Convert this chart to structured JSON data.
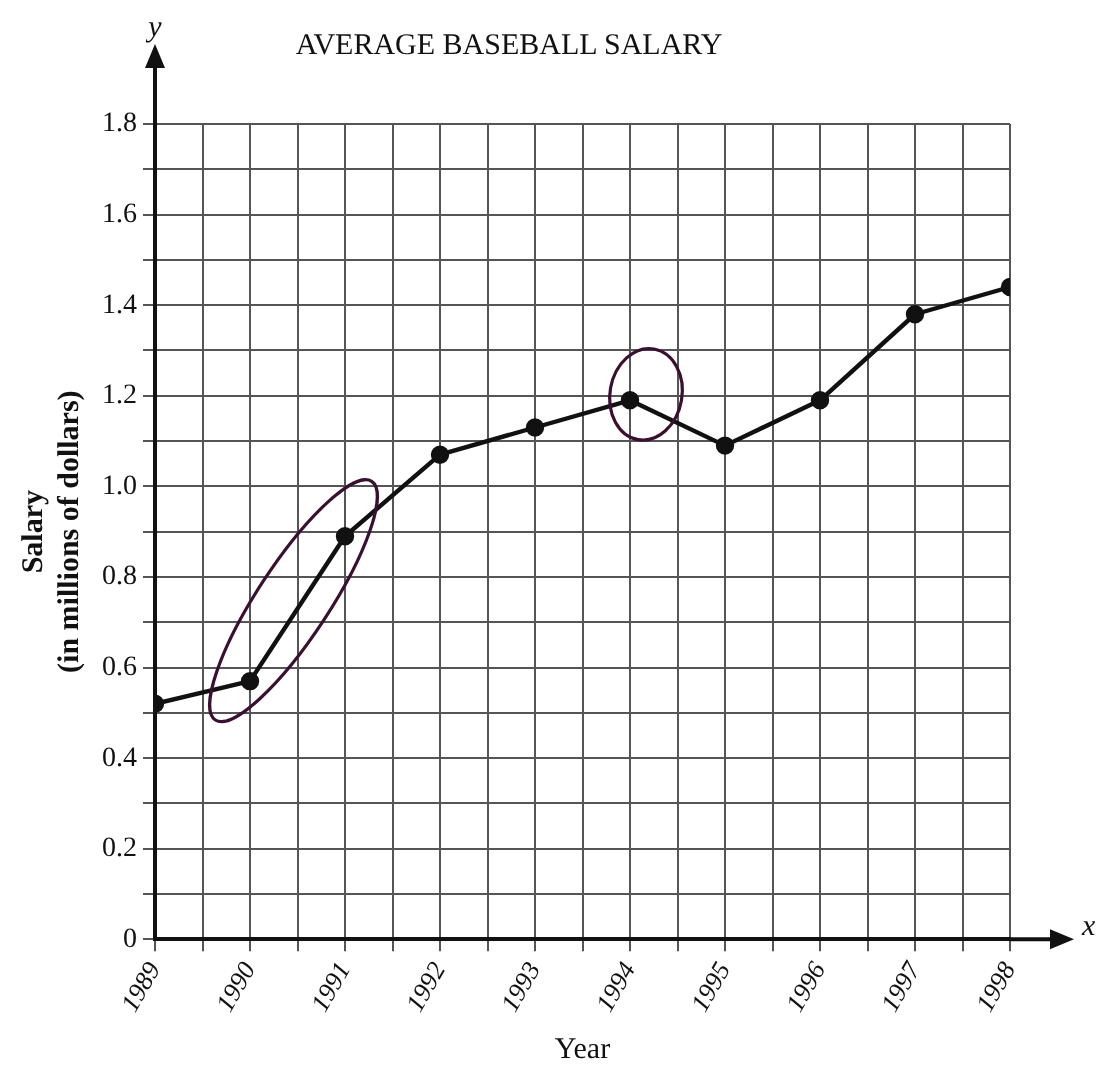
{
  "chart_data": {
    "type": "line",
    "title": "AVERAGE BASEBALL SALARY",
    "xlabel": "Year",
    "ylabel": "Salary\n(in millions of dollars)",
    "annotations": [
      "y",
      "x"
    ],
    "x": [
      1989,
      1990,
      1991,
      1992,
      1993,
      1994,
      1995,
      1996,
      1997,
      1998
    ],
    "series": [
      {
        "color": "#111111",
        "values": [
          0.52,
          0.57,
          0.89,
          1.07,
          1.13,
          1.19,
          1.09,
          1.19,
          1.38,
          1.44
        ]
      }
    ],
    "xlim": [
      1989,
      1998
    ],
    "xticks": [
      1989,
      {
        "value": 1989.5,
        "label": null
      },
      1990,
      {
        "value": 1990.5,
        "label": null
      },
      1991,
      {
        "value": 1991.5,
        "label": null
      },
      1992,
      {
        "value": 1992.5,
        "label": null
      },
      1993,
      {
        "value": 1993.5,
        "label": null
      },
      1994,
      {
        "value": 1994.5,
        "label": null
      },
      1995,
      {
        "value": 1995.5,
        "label": null
      },
      1996,
      {
        "value": 1996.5,
        "label": null
      },
      1997,
      {
        "value": 1997.5,
        "label": null
      },
      1998
    ],
    "ylim": [
      0,
      1.8
    ],
    "yticks": [
      0,
      {
        "value": 0.1,
        "label": null
      },
      0.2,
      {
        "value": 0.3,
        "label": null
      },
      0.4,
      {
        "value": 0.5,
        "label": null
      },
      0.6,
      {
        "value": 0.7,
        "label": null
      },
      0.8,
      {
        "value": 0.9,
        "label": null
      },
      {
        "value": 1,
        "label": "1.0"
      },
      {
        "value": 1.1,
        "label": null
      },
      1.2,
      {
        "value": 1.3,
        "label": null
      },
      1.4,
      {
        "value": 1.5,
        "label": null
      },
      1.6,
      {
        "value": 1.7,
        "label": null
      },
      1.8
    ],
    "grid": true,
    "legend": false,
    "marker": "circle",
    "line_style": "solid"
  }
}
